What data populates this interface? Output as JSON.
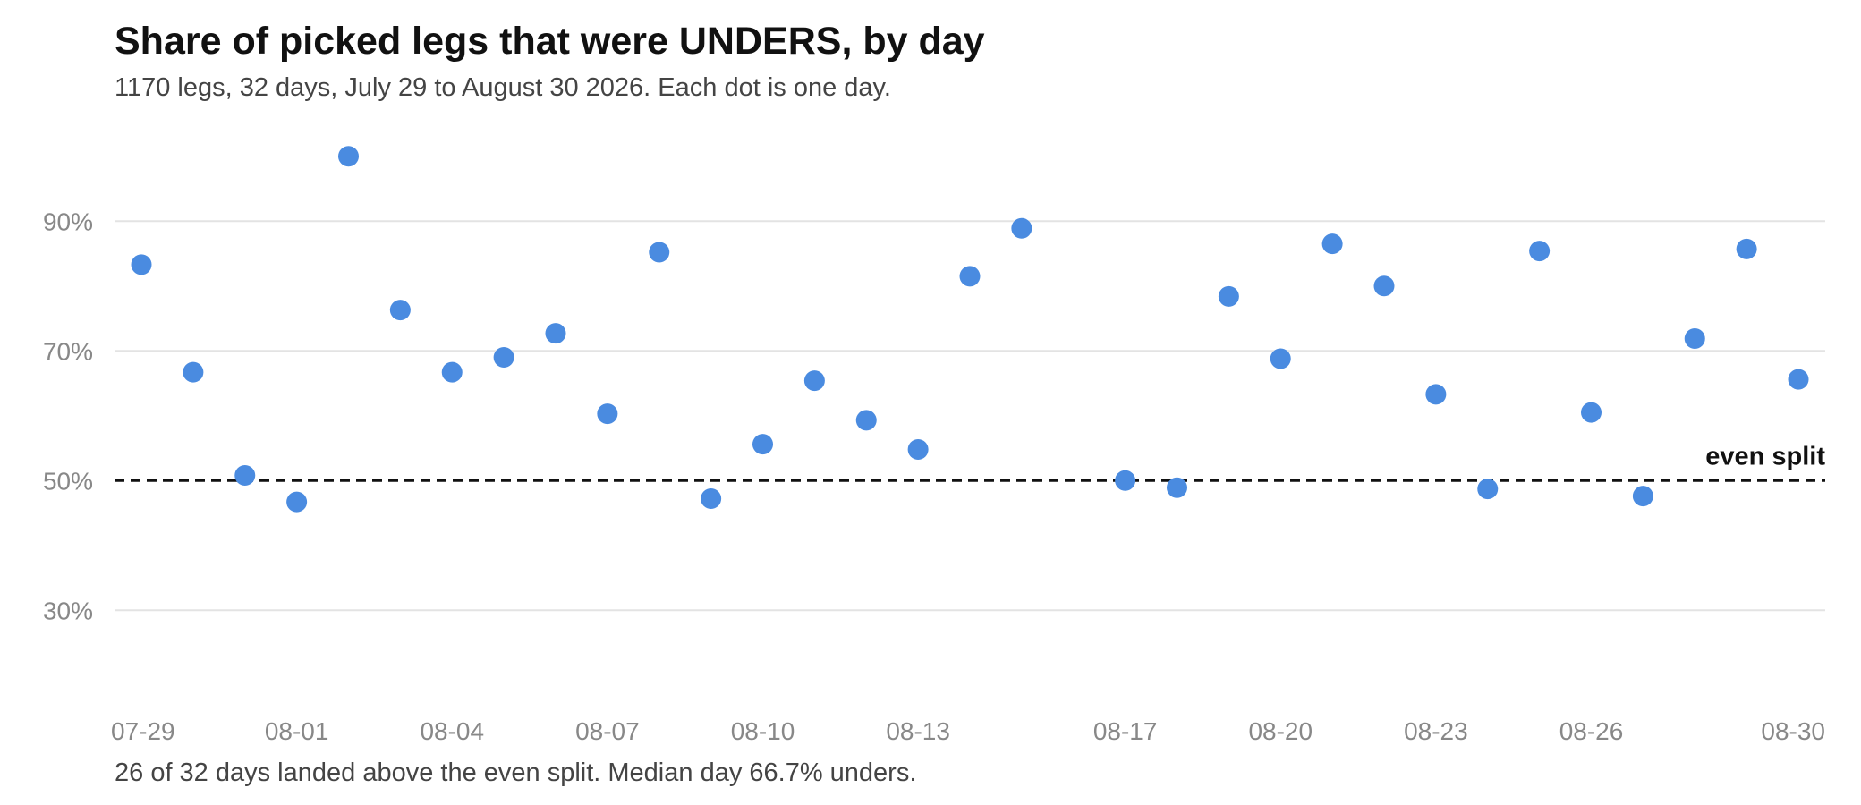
{
  "chart_data": {
    "type": "scatter",
    "title": "Share of picked legs that were UNDERS, by day",
    "subtitle": "1170 legs, 32 days, July 29 to August 30 2026. Each dot is one day.",
    "footnote": "26 of 32 days landed above the even split. Median day 66.7% unders.",
    "xlabel": "",
    "ylabel": "",
    "x_tick_labels": [
      "07-29",
      "08-01",
      "08-04",
      "08-07",
      "08-10",
      "08-13",
      "08-17",
      "08-20",
      "08-23",
      "08-26",
      "08-30"
    ],
    "y_ticks": [
      30,
      50,
      70,
      90
    ],
    "y_tick_labels": [
      "30%",
      "50%",
      "70%",
      "90%"
    ],
    "ylim": [
      23,
      103
    ],
    "grid": true,
    "reference_line": {
      "value": 50,
      "label": "even split",
      "style": "dashed"
    },
    "dot_color": "#4a8be0",
    "series": [
      {
        "x": [
          "07-29",
          "07-30",
          "07-31",
          "08-01",
          "08-02",
          "08-03",
          "08-04",
          "08-05",
          "08-06",
          "08-07",
          "08-08",
          "08-09",
          "08-10",
          "08-11",
          "08-12",
          "08-13",
          "08-14",
          "08-15",
          "08-17",
          "08-18",
          "08-19",
          "08-20",
          "08-21",
          "08-22",
          "08-23",
          "08-24",
          "08-25",
          "08-26",
          "08-27",
          "08-28",
          "08-29",
          "08-30"
        ],
        "values": [
          83.3,
          66.7,
          50.8,
          46.7,
          100,
          76.3,
          66.7,
          69.0,
          72.7,
          60.3,
          85.2,
          47.2,
          55.6,
          65.4,
          59.3,
          54.8,
          81.5,
          88.9,
          50.0,
          48.9,
          78.4,
          68.8,
          86.5,
          80.0,
          63.3,
          48.7,
          85.4,
          60.5,
          47.6,
          71.9,
          85.7,
          65.6
        ]
      }
    ]
  }
}
